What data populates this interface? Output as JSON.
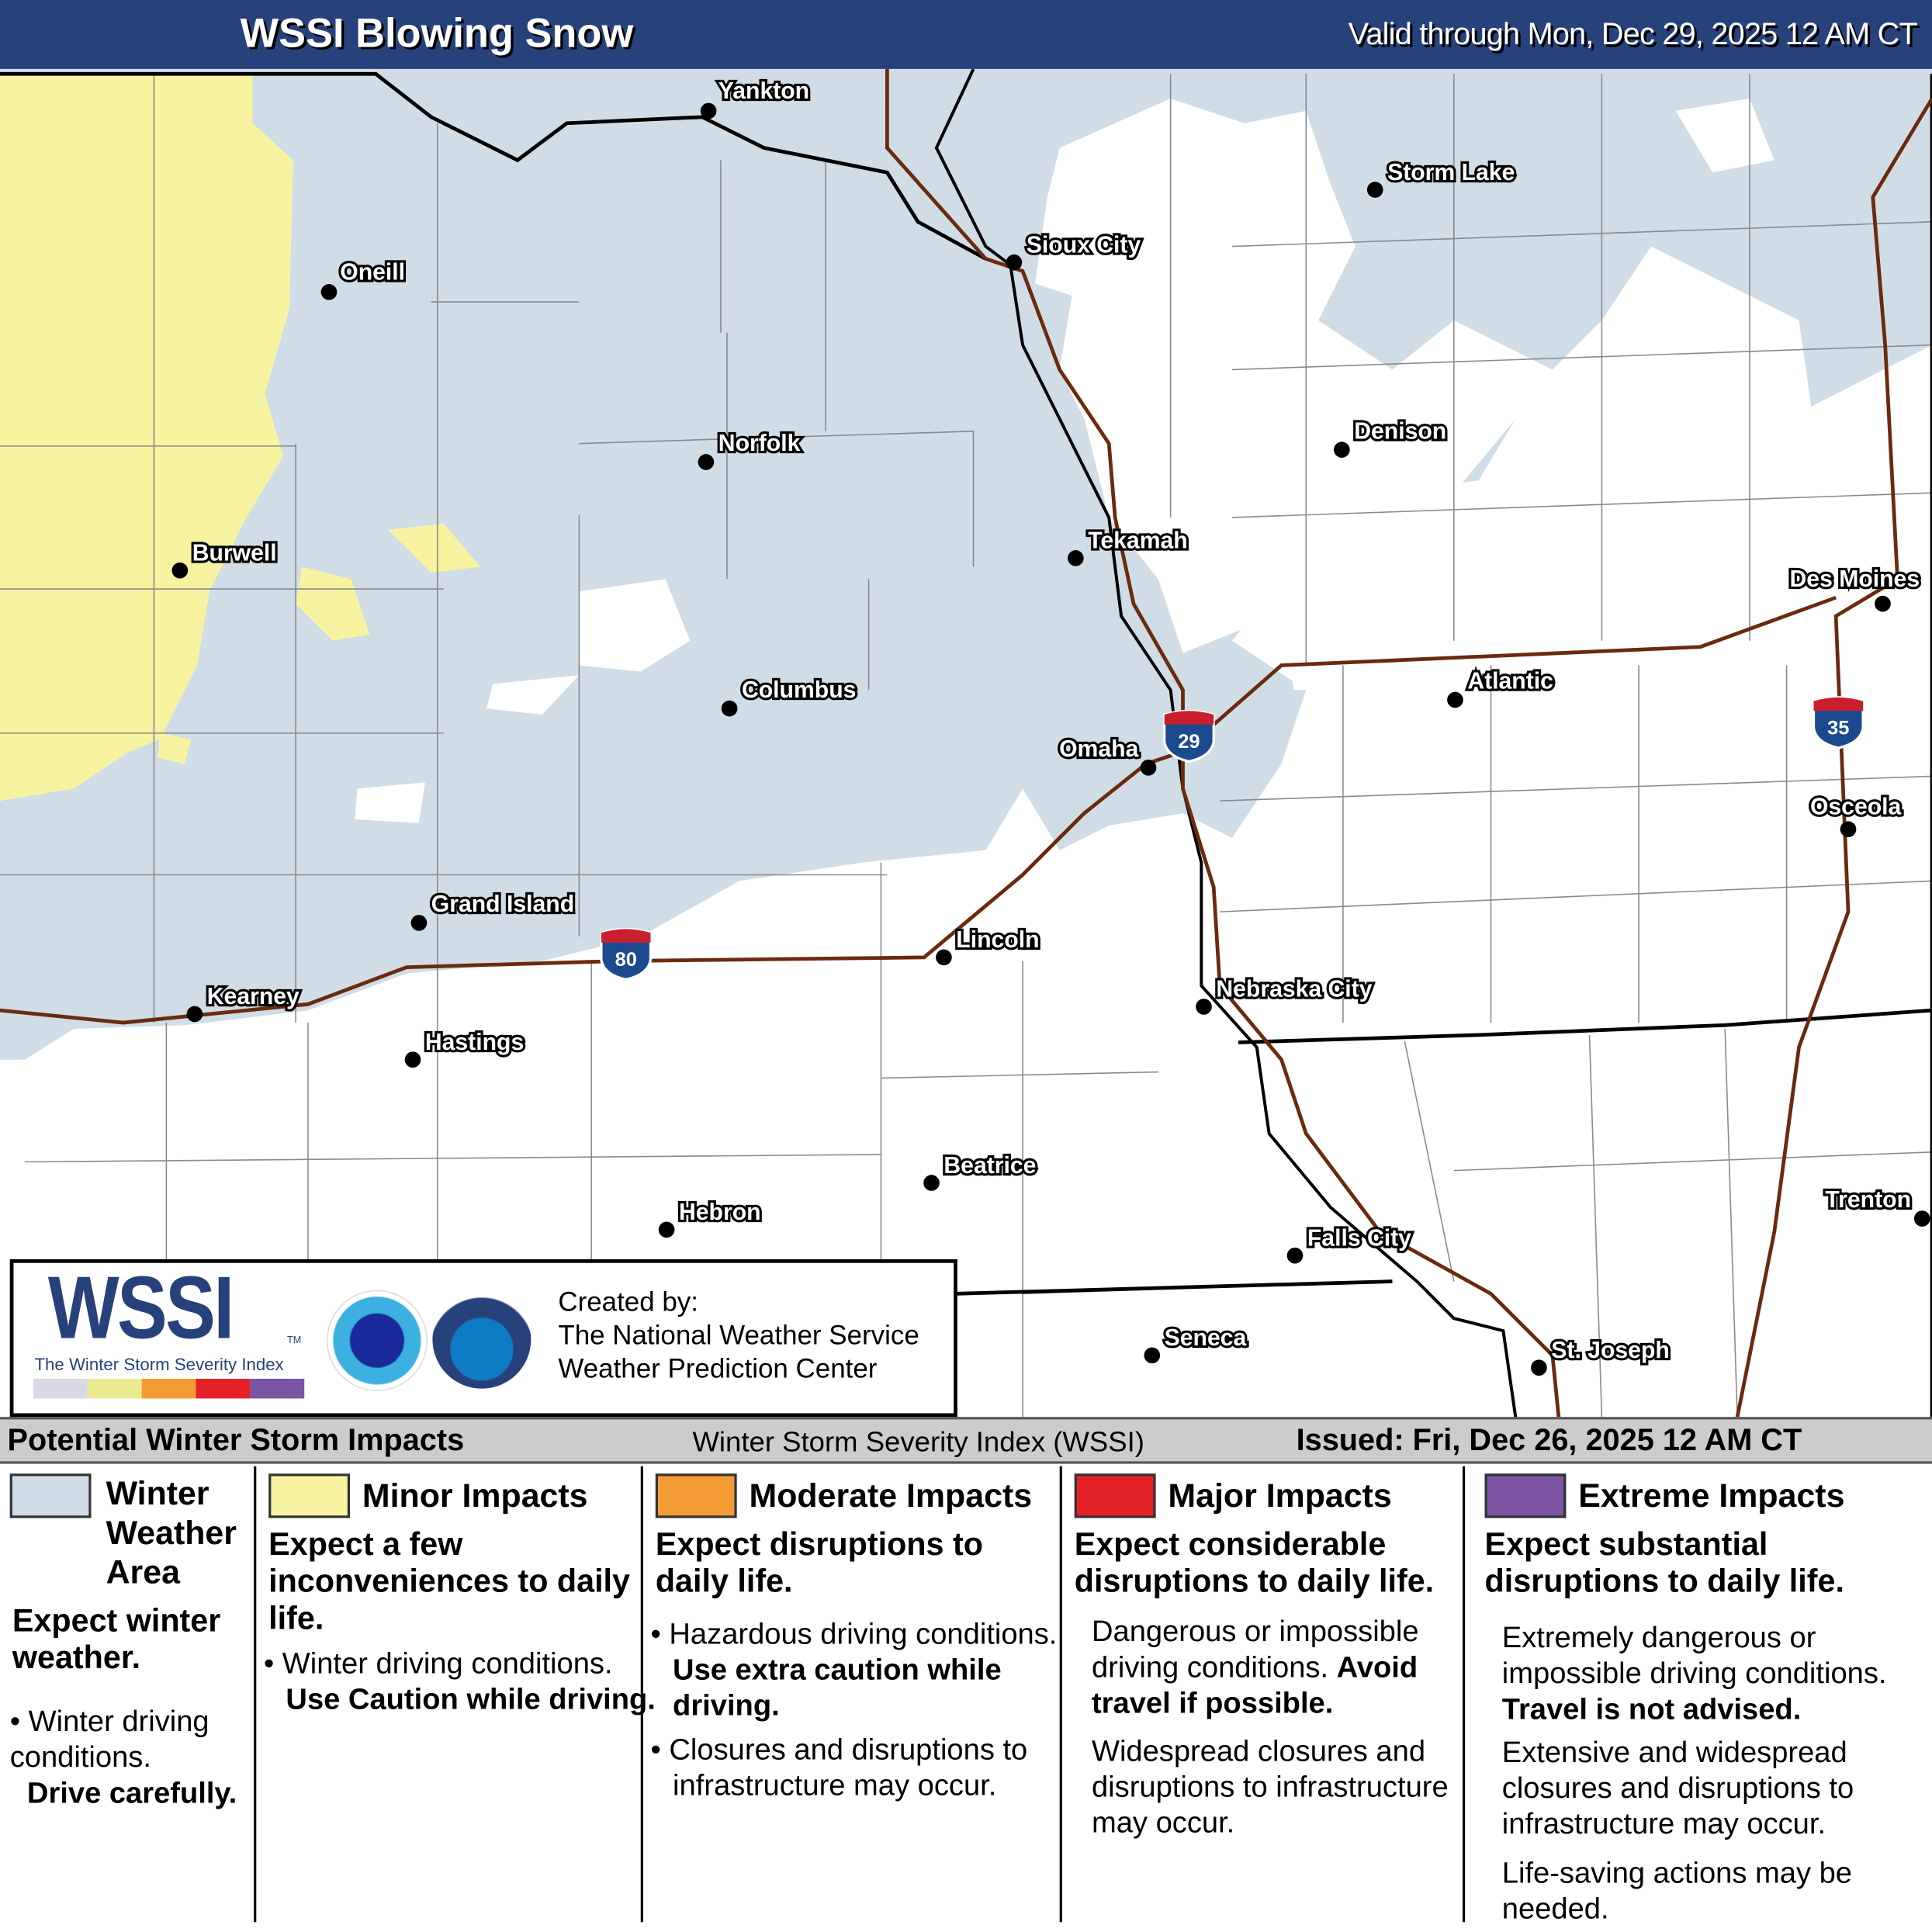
{
  "header": {
    "title": "WSSI Blowing Snow",
    "valid": "Valid through Mon, Dec 29, 2025 12 AM CT"
  },
  "colors": {
    "header": "#27417a",
    "winter_weather": "#d0dde6",
    "minor": "#f7f3a1",
    "moderate": "#f39b35",
    "major": "#e32228",
    "extreme": "#7b54a3",
    "interstate": "#6b2a0e",
    "river": "#000000"
  },
  "cities": [
    "Yankton",
    "Oneill",
    "Norfolk",
    "Burwell",
    "Columbus",
    "Grand Island",
    "Kearney",
    "Hastings",
    "Lincoln",
    "Beatrice",
    "Hebron",
    "Sioux City",
    "Storm Lake",
    "Denison",
    "Tekamah",
    "Omaha",
    "Des Moines",
    "Atlantic",
    "Osceola",
    "Nebraska City",
    "Falls City",
    "Seneca",
    "St. Joseph",
    "Trenton"
  ],
  "interstates": [
    "80",
    "29",
    "35"
  ],
  "inset": {
    "logo_text": "WSSI",
    "tm": "TM",
    "logo_subtitle": "The Winter Storm Severity Index",
    "nws_logo": "NATIONAL WEATHER SERVICE",
    "noaa_logo": "NOAA",
    "created_by": "Created by:",
    "org1": "The National Weather Service",
    "org2": "Weather Prediction Center"
  },
  "legend": {
    "title": "Potential Winter Storm Impacts",
    "index_name": "Winter Storm Severity Index (WSSI)",
    "issued": "Issued: Fri, Dec 26, 2025 12 AM CT",
    "columns": [
      {
        "title": "Winter Weather Area",
        "title_lines": [
          "Winter",
          "Weather",
          "Area"
        ],
        "lead": "Expect winter weather.",
        "bullets": [
          "Winter driving conditions."
        ],
        "bold": "Drive carefully."
      },
      {
        "title": "Minor Impacts",
        "lead": "Expect a few inconveniences to daily life.",
        "bullets": [
          "Winter driving conditions."
        ],
        "bold": "Use Caution while driving."
      },
      {
        "title": "Moderate Impacts",
        "lead": "Expect disruptions to daily life.",
        "bullets": [
          "Hazardous driving conditions.",
          "Closures and disruptions to infrastructure may occur."
        ],
        "bold": "Use extra caution while driving."
      },
      {
        "title": "Major Impacts",
        "lead": "Expect considerable disruptions to daily life.",
        "text1": "Dangerous or impossible driving conditions.",
        "bold": "Avoid travel if possible.",
        "text2": "Widespread closures and disruptions to infrastructure may occur."
      },
      {
        "title": "Extreme Impacts",
        "lead": "Expect substantial disruptions to daily life.",
        "text1": "Extremely dangerous or impossible driving conditions.",
        "bold": "Travel is not advised.",
        "text2": "Extensive and widespread closures and disruptions to infrastructure may occur.",
        "text3": "Life-saving actions may be needed."
      }
    ]
  }
}
